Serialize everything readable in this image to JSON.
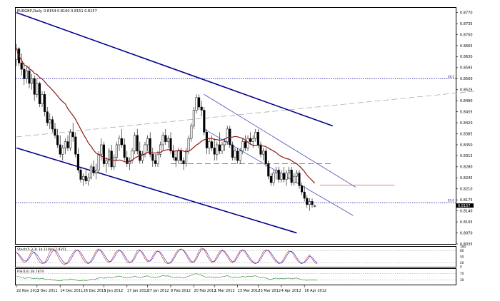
{
  "header": {
    "symbol_label": "EURGBP,Daily",
    "ohlc_label": "0.8154 0.8160 0.8151 0.8157"
  },
  "colors": {
    "bull": "#ffffff",
    "bear": "#000000",
    "wick": "#000000",
    "ma": "#8b1a1a",
    "main_channel": "#00008b",
    "small_channel": "#4b4bb8",
    "fib_line": "#2222aa",
    "resistance": "#e05050",
    "stoch_main": "#d02020",
    "stoch_signal": "#2020d0",
    "rsi": "#208020"
  },
  "chart_data": [
    {
      "type": "candlestick",
      "title": "EURGBP,Daily",
      "y_ticks": [
        "0.8770",
        "0.8735",
        "0.8700",
        "0.8665",
        "0.8630",
        "0.8595",
        "0.8560",
        "0.8525",
        "0.8490",
        "0.8455",
        "0.8420",
        "0.8385",
        "0.8350",
        "0.8315",
        "0.8280",
        "0.8245",
        "0.8210",
        "0.8175",
        "0.8140",
        "0.8105",
        "0.8070",
        "0.8035"
      ],
      "ylim": [
        0.8035,
        0.8785
      ],
      "x_ticks": [
        "22 Nov 2011",
        "2 Dec 2011",
        "14 Dec 2011",
        "26 Dec 2011",
        "5 Jan 2012",
        "17 Jan 2012",
        "27 Jan 2012",
        "8 Feb 2012",
        "20 Feb 2012",
        "1 Mar 2012",
        "13 Mar 2012",
        "23 Mar 2012",
        "4 Apr 2012",
        "16 Apr 2012"
      ],
      "x_tick_index": [
        0,
        8,
        17,
        26,
        34,
        43,
        51,
        60,
        69,
        77,
        86,
        94,
        103,
        112
      ],
      "current_price_label": "0.8157",
      "annotations": [
        {
          "label": "38.2",
          "price": 0.856
        },
        {
          "label": "50.0",
          "price": 0.8166
        }
      ],
      "candles": [
        [
          0.862,
          0.867,
          0.86,
          0.8655
        ],
        [
          0.8655,
          0.866,
          0.86,
          0.861
        ],
        [
          0.861,
          0.864,
          0.857,
          0.859
        ],
        [
          0.859,
          0.861,
          0.854,
          0.856
        ],
        [
          0.856,
          0.86,
          0.8545,
          0.8585
        ],
        [
          0.8585,
          0.86,
          0.853,
          0.8545
        ],
        [
          0.8545,
          0.8575,
          0.8525,
          0.856
        ],
        [
          0.856,
          0.857,
          0.849,
          0.851
        ],
        [
          0.851,
          0.856,
          0.85,
          0.8545
        ],
        [
          0.8545,
          0.855,
          0.847,
          0.848
        ],
        [
          0.848,
          0.852,
          0.847,
          0.851
        ],
        [
          0.851,
          0.852,
          0.844,
          0.8455
        ],
        [
          0.8455,
          0.847,
          0.841,
          0.842
        ],
        [
          0.842,
          0.845,
          0.84,
          0.843
        ],
        [
          0.843,
          0.844,
          0.839,
          0.84
        ],
        [
          0.84,
          0.842,
          0.837,
          0.838
        ],
        [
          0.838,
          0.84,
          0.834,
          0.835
        ],
        [
          0.835,
          0.838,
          0.831,
          0.832
        ],
        [
          0.832,
          0.835,
          0.83,
          0.834
        ],
        [
          0.834,
          0.837,
          0.832,
          0.836
        ],
        [
          0.836,
          0.838,
          0.833,
          0.834
        ],
        [
          0.834,
          0.84,
          0.833,
          0.839
        ],
        [
          0.839,
          0.842,
          0.836,
          0.8375
        ],
        [
          0.8375,
          0.839,
          0.831,
          0.832
        ],
        [
          0.832,
          0.834,
          0.826,
          0.827
        ],
        [
          0.827,
          0.828,
          0.823,
          0.824
        ],
        [
          0.824,
          0.826,
          0.822,
          0.825
        ],
        [
          0.825,
          0.827,
          0.8225,
          0.8235
        ],
        [
          0.8235,
          0.826,
          0.822,
          0.8245
        ],
        [
          0.8245,
          0.829,
          0.824,
          0.828
        ],
        [
          0.828,
          0.83,
          0.825,
          0.826
        ],
        [
          0.826,
          0.829,
          0.824,
          0.827
        ],
        [
          0.827,
          0.833,
          0.826,
          0.832
        ],
        [
          0.832,
          0.837,
          0.83,
          0.835
        ],
        [
          0.835,
          0.836,
          0.828,
          0.829
        ],
        [
          0.829,
          0.831,
          0.826,
          0.83
        ],
        [
          0.83,
          0.834,
          0.828,
          0.833
        ],
        [
          0.833,
          0.835,
          0.827,
          0.828
        ],
        [
          0.828,
          0.832,
          0.827,
          0.831
        ],
        [
          0.831,
          0.836,
          0.83,
          0.835
        ],
        [
          0.835,
          0.838,
          0.833,
          0.837
        ],
        [
          0.837,
          0.84,
          0.834,
          0.835
        ],
        [
          0.835,
          0.837,
          0.83,
          0.831
        ],
        [
          0.831,
          0.833,
          0.828,
          0.829
        ],
        [
          0.829,
          0.831,
          0.827,
          0.83
        ],
        [
          0.83,
          0.834,
          0.829,
          0.833
        ],
        [
          0.833,
          0.839,
          0.832,
          0.838
        ],
        [
          0.838,
          0.84,
          0.832,
          0.833
        ],
        [
          0.833,
          0.836,
          0.829,
          0.83
        ],
        [
          0.83,
          0.833,
          0.829,
          0.832
        ],
        [
          0.832,
          0.836,
          0.831,
          0.835
        ],
        [
          0.835,
          0.838,
          0.833,
          0.837
        ],
        [
          0.837,
          0.839,
          0.831,
          0.832
        ],
        [
          0.832,
          0.834,
          0.828,
          0.83
        ],
        [
          0.83,
          0.832,
          0.828,
          0.829
        ],
        [
          0.829,
          0.833,
          0.828,
          0.832
        ],
        [
          0.832,
          0.836,
          0.831,
          0.835
        ],
        [
          0.835,
          0.839,
          0.833,
          0.838
        ],
        [
          0.838,
          0.84,
          0.835,
          0.836
        ],
        [
          0.836,
          0.838,
          0.834,
          0.837
        ],
        [
          0.837,
          0.839,
          0.832,
          0.833
        ],
        [
          0.833,
          0.835,
          0.83,
          0.831
        ],
        [
          0.831,
          0.833,
          0.828,
          0.83
        ],
        [
          0.83,
          0.834,
          0.829,
          0.833
        ],
        [
          0.833,
          0.834,
          0.829,
          0.83
        ],
        [
          0.83,
          0.831,
          0.827,
          0.829
        ],
        [
          0.829,
          0.834,
          0.828,
          0.833
        ],
        [
          0.833,
          0.838,
          0.832,
          0.837
        ],
        [
          0.837,
          0.842,
          0.836,
          0.841
        ],
        [
          0.841,
          0.847,
          0.84,
          0.846
        ],
        [
          0.846,
          0.851,
          0.845,
          0.85
        ],
        [
          0.85,
          0.851,
          0.846,
          0.847
        ],
        [
          0.847,
          0.849,
          0.844,
          0.846
        ],
        [
          0.846,
          0.847,
          0.838,
          0.839
        ],
        [
          0.839,
          0.84,
          0.832,
          0.834
        ],
        [
          0.834,
          0.837,
          0.832,
          0.836
        ],
        [
          0.836,
          0.838,
          0.833,
          0.834
        ],
        [
          0.834,
          0.837,
          0.83,
          0.832
        ],
        [
          0.832,
          0.836,
          0.83,
          0.835
        ],
        [
          0.835,
          0.839,
          0.832,
          0.833
        ],
        [
          0.833,
          0.836,
          0.832,
          0.835
        ],
        [
          0.835,
          0.837,
          0.833,
          0.836
        ],
        [
          0.836,
          0.841,
          0.835,
          0.84
        ],
        [
          0.84,
          0.841,
          0.834,
          0.835
        ],
        [
          0.835,
          0.836,
          0.83,
          0.831
        ],
        [
          0.831,
          0.834,
          0.83,
          0.833
        ],
        [
          0.833,
          0.834,
          0.829,
          0.83
        ],
        [
          0.83,
          0.834,
          0.829,
          0.833
        ],
        [
          0.833,
          0.837,
          0.832,
          0.836
        ],
        [
          0.836,
          0.838,
          0.833,
          0.834
        ],
        [
          0.834,
          0.838,
          0.833,
          0.837
        ],
        [
          0.837,
          0.839,
          0.835,
          0.836
        ],
        [
          0.836,
          0.838,
          0.834,
          0.837
        ],
        [
          0.837,
          0.84,
          0.836,
          0.839
        ],
        [
          0.839,
          0.84,
          0.834,
          0.835
        ],
        [
          0.835,
          0.836,
          0.831,
          0.832
        ],
        [
          0.832,
          0.834,
          0.83,
          0.833
        ],
        [
          0.833,
          0.834,
          0.828,
          0.829
        ],
        [
          0.829,
          0.83,
          0.824,
          0.825
        ],
        [
          0.825,
          0.826,
          0.822,
          0.823
        ],
        [
          0.823,
          0.827,
          0.822,
          0.826
        ],
        [
          0.826,
          0.828,
          0.824,
          0.827
        ],
        [
          0.827,
          0.828,
          0.823,
          0.824
        ],
        [
          0.824,
          0.827,
          0.823,
          0.826
        ],
        [
          0.826,
          0.828,
          0.823,
          0.824
        ],
        [
          0.824,
          0.827,
          0.822,
          0.826
        ],
        [
          0.826,
          0.828,
          0.824,
          0.827
        ],
        [
          0.827,
          0.828,
          0.822,
          0.823
        ],
        [
          0.823,
          0.826,
          0.822,
          0.825
        ],
        [
          0.825,
          0.827,
          0.823,
          0.826
        ],
        [
          0.826,
          0.827,
          0.821,
          0.822
        ],
        [
          0.822,
          0.823,
          0.819,
          0.82
        ],
        [
          0.82,
          0.822,
          0.817,
          0.818
        ],
        [
          0.818,
          0.819,
          0.815,
          0.816
        ],
        [
          0.816,
          0.818,
          0.814,
          0.817
        ],
        [
          0.817,
          0.818,
          0.815,
          0.816
        ],
        [
          0.8154,
          0.816,
          0.8151,
          0.8157
        ]
      ],
      "trend_lines": [
        {
          "name": "upper-channel",
          "from": [
            0,
            0.877
          ],
          "to": [
            123,
            0.841
          ]
        },
        {
          "name": "lower-channel",
          "from": [
            0,
            0.834
          ],
          "to": [
            109,
            0.807
          ]
        },
        {
          "name": "inner-upper",
          "from": [
            73,
            0.851
          ],
          "to": [
            132,
            0.8215
          ]
        },
        {
          "name": "inner-lower",
          "from": [
            73,
            0.84
          ],
          "to": [
            131,
            0.8125
          ]
        },
        {
          "name": "rising-dashed",
          "from": [
            0,
            0.8375
          ],
          "to": [
            178,
            0.852
          ]
        }
      ],
      "horizontal_lines": [
        {
          "name": "fib-38",
          "price": 0.856,
          "style": "dotted"
        },
        {
          "name": "fib-50",
          "price": 0.8166,
          "style": "dotted"
        },
        {
          "name": "support-dashed",
          "price": 0.829,
          "from": 60,
          "to": 123,
          "style": "dashed"
        },
        {
          "name": "resistance-red",
          "price": 0.8222,
          "from": 118,
          "to": 147,
          "style": "solid"
        }
      ]
    },
    {
      "type": "line",
      "title": "Stoch(5,3,3) 14.1104 17.8351",
      "y_ticks": [
        "100",
        "80",
        "50",
        "20",
        "0"
      ],
      "ylim": [
        0,
        100
      ],
      "series": [
        {
          "name": "main",
          "values": [
            75,
            55,
            35,
            20,
            30,
            55,
            80,
            70,
            45,
            25,
            15,
            20,
            45,
            75,
            90,
            80,
            55,
            30,
            15,
            10,
            25,
            50,
            70,
            85,
            80,
            60,
            35,
            20,
            15,
            30,
            55,
            80,
            90,
            75,
            50,
            30,
            20,
            35,
            60,
            80,
            85,
            70,
            45,
            25,
            20,
            30,
            55,
            80,
            85,
            65,
            40,
            25,
            30,
            55,
            75,
            80,
            65,
            40,
            20,
            15,
            25,
            45,
            70,
            85,
            90,
            80,
            60,
            35,
            20,
            25,
            50,
            80,
            95,
            85,
            60,
            35,
            20,
            30,
            55,
            75,
            85,
            70,
            50,
            30,
            20,
            35,
            60,
            80,
            85,
            70,
            50,
            30,
            20,
            15,
            25,
            50,
            75,
            85,
            80,
            60,
            40,
            25,
            15,
            20,
            40,
            65,
            80,
            75,
            55,
            35,
            20,
            15,
            25,
            45,
            60,
            40,
            20,
            14
          ]
        },
        {
          "name": "signal",
          "values": [
            70,
            62,
            45,
            30,
            28,
            42,
            65,
            74,
            60,
            40,
            25,
            18,
            30,
            55,
            78,
            85,
            70,
            48,
            28,
            15,
            18,
            35,
            58,
            78,
            84,
            72,
            50,
            30,
            18,
            22,
            42,
            68,
            86,
            82,
            64,
            42,
            26,
            28,
            45,
            70,
            82,
            78,
            58,
            36,
            22,
            25,
            42,
            68,
            82,
            74,
            52,
            32,
            28,
            42,
            65,
            78,
            74,
            54,
            32,
            18,
            18,
            35,
            58,
            78,
            88,
            84,
            68,
            46,
            28,
            22,
            38,
            65,
            88,
            90,
            74,
            48,
            28,
            25,
            42,
            65,
            80,
            78,
            60,
            40,
            25,
            28,
            48,
            72,
            84,
            78,
            60,
            40,
            25,
            18,
            20,
            38,
            62,
            80,
            82,
            70,
            50,
            32,
            20,
            18,
            30,
            52,
            74,
            78,
            66,
            45,
            28,
            18,
            20,
            34,
            52,
            48,
            30,
            17.8
          ]
        }
      ]
    },
    {
      "type": "line",
      "title": "RSI(14) 28.7874",
      "y_ticks": [
        "70",
        "30"
      ],
      "ylim": [
        0,
        100
      ],
      "series": [
        {
          "name": "rsi",
          "values": [
            55,
            50,
            45,
            40,
            42,
            44,
            40,
            38,
            42,
            36,
            40,
            35,
            32,
            34,
            30,
            28,
            26,
            24,
            28,
            32,
            30,
            36,
            34,
            30,
            26,
            24,
            28,
            26,
            28,
            34,
            32,
            36,
            42,
            46,
            40,
            44,
            48,
            42,
            46,
            52,
            54,
            50,
            44,
            42,
            44,
            48,
            54,
            48,
            44,
            48,
            52,
            56,
            50,
            46,
            44,
            48,
            52,
            58,
            54,
            56,
            50,
            46,
            44,
            48,
            44,
            42,
            48,
            54,
            60,
            66,
            70,
            64,
            60,
            52,
            46,
            50,
            48,
            44,
            48,
            46,
            50,
            52,
            58,
            50,
            44,
            48,
            44,
            48,
            52,
            48,
            54,
            52,
            54,
            56,
            48,
            44,
            48,
            42,
            36,
            32,
            38,
            42,
            36,
            40,
            36,
            40,
            42,
            36,
            40,
            42,
            36,
            32,
            30,
            27,
            30,
            29,
            28,
            28.8
          ]
        }
      ]
    }
  ]
}
